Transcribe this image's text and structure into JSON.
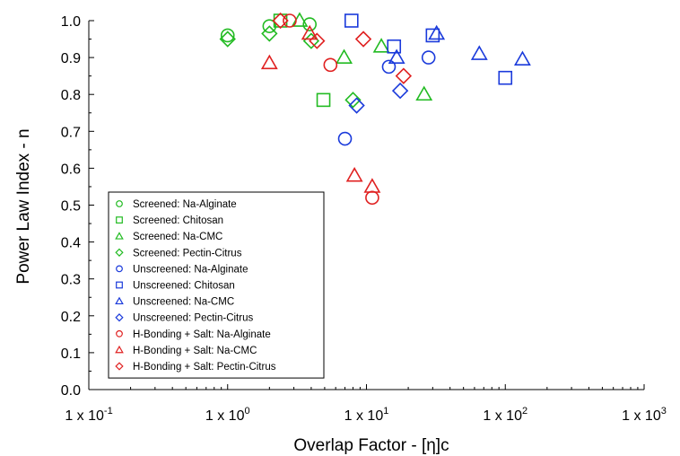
{
  "chart_data": {
    "type": "scatter",
    "title": "",
    "xlabel": "Overlap Factor - [η]c",
    "ylabel": "Power Law Index - n",
    "xscale": "log",
    "xlim": [
      0.1,
      1000
    ],
    "ylim": [
      0.0,
      1.0
    ],
    "x_ticks": [
      {
        "value": 0.1,
        "base": "1 x 10",
        "exp": "-1"
      },
      {
        "value": 1,
        "base": "1 x 10",
        "exp": "0"
      },
      {
        "value": 10,
        "base": "1 x 10",
        "exp": "1"
      },
      {
        "value": 100,
        "base": "1 x 10",
        "exp": "2"
      },
      {
        "value": 1000,
        "base": "1 x 10",
        "exp": "3"
      }
    ],
    "y_ticks": [
      "0.0",
      "0.1",
      "0.2",
      "0.3",
      "0.4",
      "0.5",
      "0.6",
      "0.7",
      "0.8",
      "0.9",
      "1.0"
    ],
    "grid": false,
    "legend_position": "bottom-left",
    "series": [
      {
        "name": "Screened: Na-Alginate",
        "marker": "circle",
        "color": "#22bb22",
        "points": [
          [
            1.0,
            0.96
          ],
          [
            2.0,
            0.985
          ],
          [
            3.9,
            0.99
          ]
        ]
      },
      {
        "name": "Screened: Chitosan",
        "marker": "square",
        "color": "#22bb22",
        "points": [
          [
            2.4,
            1.0
          ],
          [
            4.9,
            0.785
          ]
        ]
      },
      {
        "name": "Screened: Na-CMC",
        "marker": "triangle",
        "color": "#22bb22",
        "points": [
          [
            3.3,
            1.0
          ],
          [
            6.9,
            0.9
          ],
          [
            12.8,
            0.93
          ],
          [
            26.0,
            0.8
          ]
        ]
      },
      {
        "name": "Screened: Pectin-Citrus",
        "marker": "diamond",
        "color": "#22bb22",
        "points": [
          [
            1.0,
            0.95
          ],
          [
            2.0,
            0.965
          ],
          [
            4.0,
            0.945
          ],
          [
            8.0,
            0.785
          ]
        ]
      },
      {
        "name": "Unscreened: Na-Alginate",
        "marker": "circle",
        "color": "#1a3adb",
        "points": [
          [
            7.0,
            0.68
          ],
          [
            14.5,
            0.875
          ],
          [
            28.0,
            0.9
          ]
        ]
      },
      {
        "name": "Unscreened: Chitosan",
        "marker": "square",
        "color": "#1a3adb",
        "points": [
          [
            7.8,
            1.0
          ],
          [
            15.8,
            0.93
          ],
          [
            30.0,
            0.96
          ],
          [
            100.0,
            0.845
          ]
        ]
      },
      {
        "name": "Unscreened: Na-CMC",
        "marker": "triangle",
        "color": "#1a3adb",
        "points": [
          [
            16.5,
            0.9
          ],
          [
            32.0,
            0.965
          ],
          [
            65.0,
            0.91
          ],
          [
            133.0,
            0.895
          ]
        ]
      },
      {
        "name": "Unscreened: Pectin-Citrus",
        "marker": "diamond",
        "color": "#1a3adb",
        "points": [
          [
            8.5,
            0.77
          ],
          [
            17.5,
            0.81
          ]
        ]
      },
      {
        "name": "H-Bonding + Salt: Na-Alginate",
        "marker": "circle",
        "color": "#e02020",
        "points": [
          [
            2.8,
            1.0
          ],
          [
            5.5,
            0.88
          ],
          [
            11.0,
            0.52
          ]
        ]
      },
      {
        "name": "H-Bonding + Salt: Na-CMC",
        "marker": "triangle",
        "color": "#e02020",
        "points": [
          [
            2.0,
            0.885
          ],
          [
            3.9,
            0.965
          ],
          [
            8.2,
            0.58
          ],
          [
            11.0,
            0.55
          ]
        ]
      },
      {
        "name": "H-Bonding + Salt: Pectin-Citrus",
        "marker": "diamond",
        "color": "#e02020",
        "points": [
          [
            2.4,
            1.0
          ],
          [
            4.4,
            0.945
          ],
          [
            9.5,
            0.95
          ],
          [
            18.5,
            0.85
          ]
        ]
      }
    ]
  }
}
